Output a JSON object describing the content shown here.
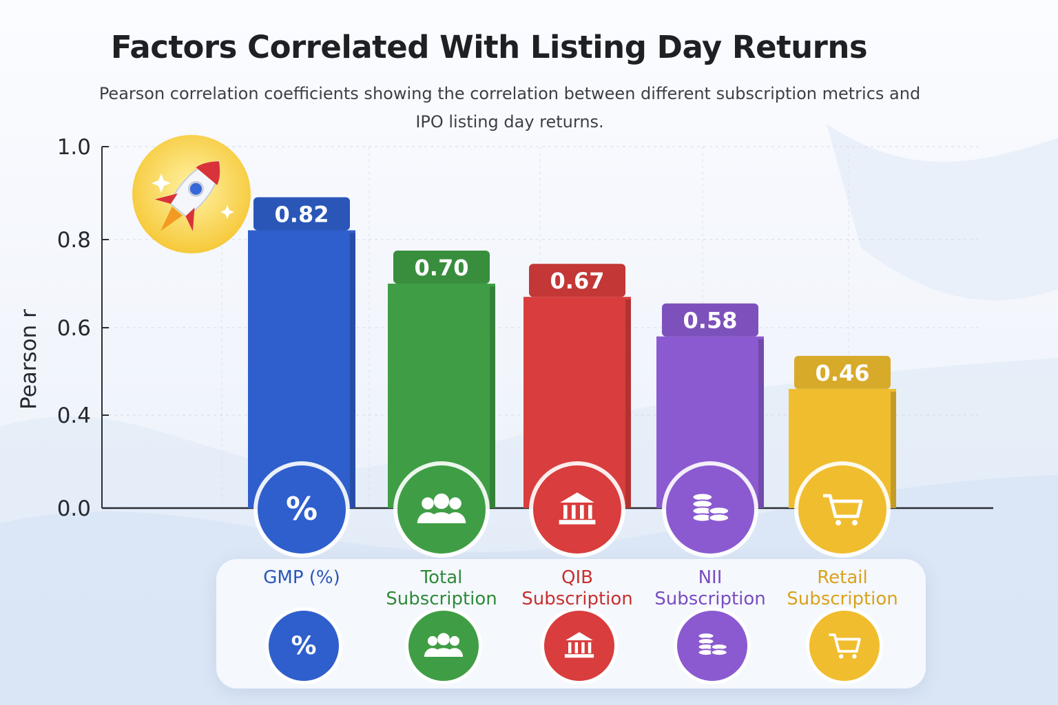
{
  "chart_data": {
    "type": "bar",
    "title": "Factors Correlated With Listing Day Returns",
    "subtitle": "Pearson correlation coefficients showing the correlation between different subscription metrics and IPO listing day returns.",
    "ylabel": "Pearson r",
    "xlabel": "",
    "ylim": [
      0.0,
      1.0
    ],
    "yticks": [
      "0.0",
      "0.4",
      "0.6",
      "0.8",
      "1.0"
    ],
    "ytick_values": [
      0.0,
      0.4,
      0.6,
      0.8,
      1.0
    ],
    "grid": true,
    "categories": [
      "GMP (%)",
      "Total Subscription",
      "QIB Subscription",
      "NII Subscription",
      "Retail Subscription"
    ],
    "values": [
      0.82,
      0.7,
      0.67,
      0.58,
      0.46
    ],
    "data_labels": [
      "0.82",
      "0.70",
      "0.67",
      "0.58",
      "0.46"
    ],
    "colors": [
      "#2f5fcc",
      "#3f9e45",
      "#d93d3d",
      "#8b5ad0",
      "#f0bd2f"
    ],
    "icons": [
      "percent-icon",
      "people-group-icon",
      "bank-building-icon",
      "coin-stack-icon",
      "shopping-cart-icon"
    ]
  }
}
